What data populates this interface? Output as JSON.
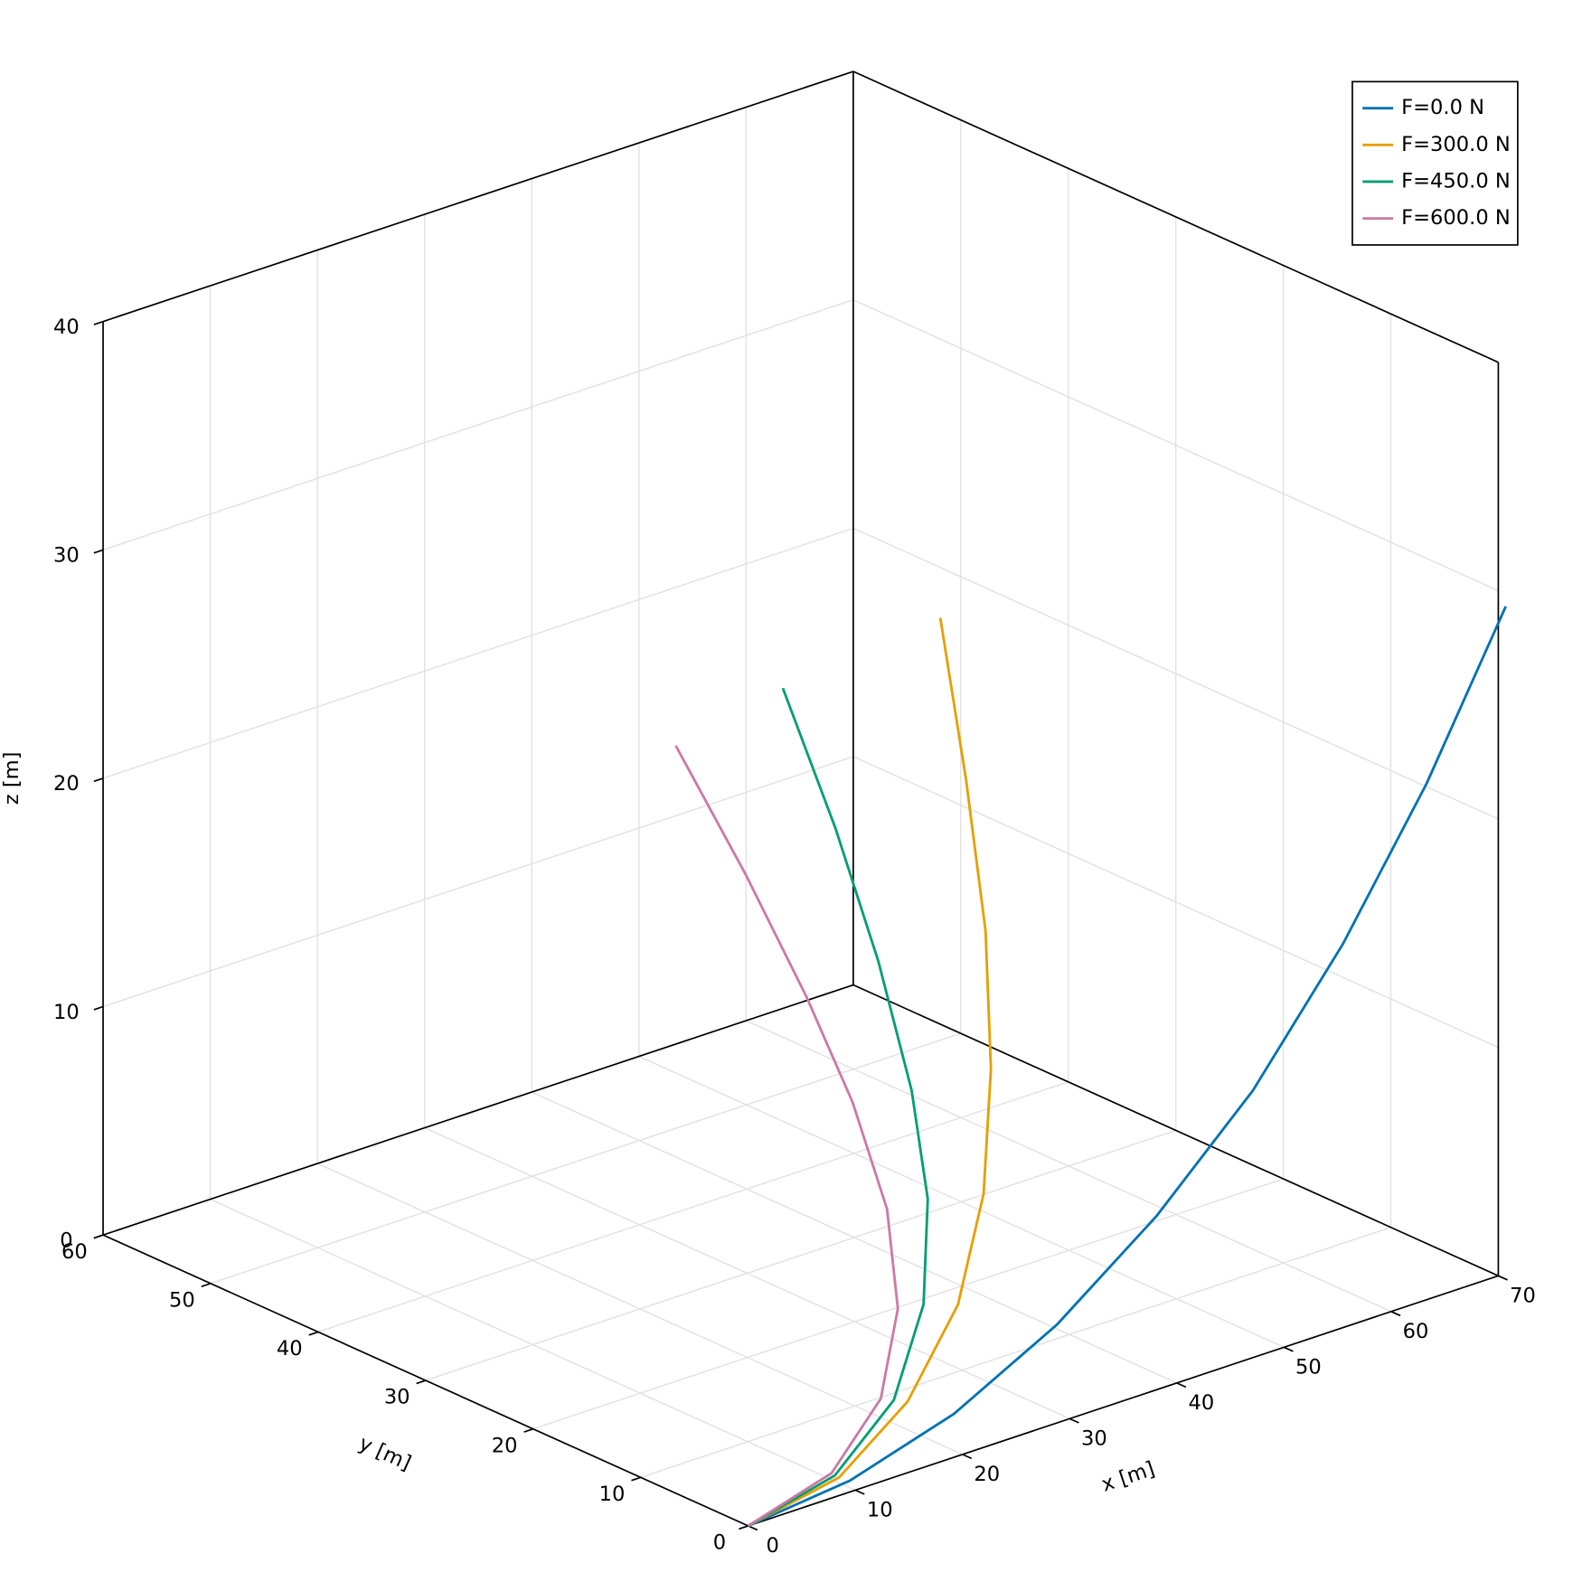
{
  "chart_data": {
    "type": "line3d",
    "xlabel": "x [m]",
    "ylabel": "y [m]",
    "zlabel": "z [m]",
    "xlim": [
      0,
      70
    ],
    "ylim": [
      0,
      60
    ],
    "zlim": [
      0,
      40
    ],
    "xticks": [
      0,
      10,
      20,
      30,
      40,
      50,
      60,
      70
    ],
    "yticks": [
      0,
      10,
      20,
      30,
      40,
      50,
      60
    ],
    "zticks": [
      0,
      10,
      20,
      30,
      40
    ],
    "grid": true,
    "legend": "top-right",
    "series": [
      {
        "name": "F=0.0 N",
        "color": "#0072b2",
        "x": [
          0,
          9.5,
          19.2,
          28.8,
          38.1,
          47.1,
          55.5,
          63.3,
          70.7
        ],
        "y": [
          0,
          0,
          0,
          0,
          0,
          0,
          0,
          0,
          0
        ],
        "z": [
          0,
          0.5,
          1.9,
          4.3,
          7.6,
          11.7,
          16.8,
          22.6,
          29.2
        ]
      },
      {
        "name": "F=300.0 N",
        "color": "#e69f00",
        "x": [
          0,
          9.3,
          18.2,
          25.9,
          31.5,
          35.6,
          37.9,
          39.0,
          39.0
        ],
        "y": [
          0,
          0.8,
          3.3,
          6.3,
          9.5,
          12.9,
          15.7,
          18.6,
          21.0
        ],
        "z": [
          0,
          0.5,
          1.9,
          4.3,
          7.6,
          11.7,
          16.8,
          22.6,
          29.2
        ]
      },
      {
        "name": "F=450.0 N",
        "color": "#009e73",
        "x": [
          0,
          9.3,
          17.6,
          24.1,
          27.9,
          28.8,
          28.5,
          26.3,
          22.2
        ],
        "y": [
          0,
          1.2,
          4.0,
          7.7,
          11.1,
          13.5,
          16.3,
          18.1,
          18.9
        ],
        "z": [
          0,
          0.5,
          1.9,
          4.3,
          7.6,
          11.7,
          16.8,
          22.6,
          29.2
        ]
      },
      {
        "name": "F=600.0 N",
        "color": "#cc79a7",
        "x": [
          0,
          9.4,
          17.1,
          22.2,
          24.5,
          24.2,
          20.4,
          16.0,
          9.6
        ],
        "y": [
          0,
          1.6,
          4.7,
          8.2,
          11.5,
          14.4,
          14.9,
          16.2,
          16.3
        ],
        "z": [
          0,
          0.5,
          1.9,
          4.3,
          7.6,
          11.7,
          16.8,
          22.6,
          29.2
        ]
      }
    ]
  }
}
